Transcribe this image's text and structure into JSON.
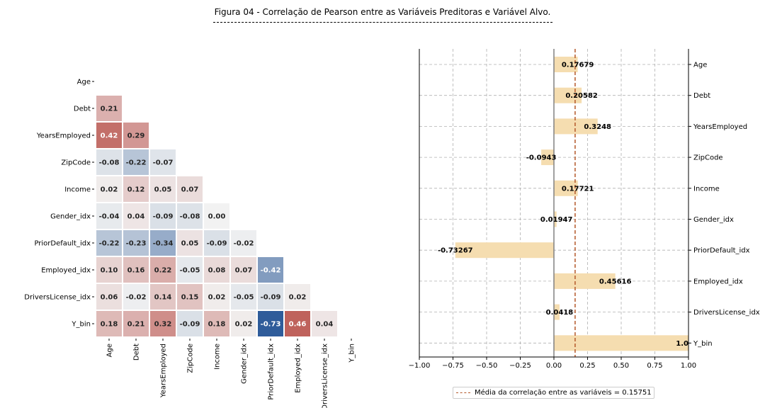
{
  "title": "Figura 04 - Correlação de Pearson entre as Variáveis Preditoras e Variável Alvo.",
  "title_underline": "--------------------------------------------------------------------------------------------------------",
  "chart_data": [
    {
      "type": "heatmap",
      "variables": [
        "Age",
        "Debt",
        "YearsEmployed",
        "ZipCode",
        "Income",
        "Gender_idx",
        "PriorDefault_idx",
        "Employed_idx",
        "DriversLicense_idx",
        "Y_bin"
      ],
      "lower_triangle": [
        [],
        [
          0.21
        ],
        [
          0.42,
          0.29
        ],
        [
          -0.08,
          -0.22,
          -0.07
        ],
        [
          0.02,
          0.12,
          0.05,
          0.07
        ],
        [
          -0.04,
          0.04,
          -0.09,
          -0.08,
          0.0
        ],
        [
          -0.22,
          -0.23,
          -0.34,
          0.05,
          -0.09,
          -0.02
        ],
        [
          0.1,
          0.16,
          0.22,
          -0.05,
          0.08,
          0.07,
          -0.42
        ],
        [
          0.06,
          -0.02,
          0.14,
          0.15,
          0.02,
          -0.05,
          -0.09,
          0.02
        ],
        [
          0.18,
          0.21,
          0.32,
          -0.09,
          0.18,
          0.02,
          -0.73,
          0.46,
          0.04
        ]
      ],
      "color_scale": {
        "negative": "#2f5c9a",
        "neutral": "#f2f2f2",
        "positive": "#b5463f"
      }
    },
    {
      "type": "bar",
      "orientation": "horizontal",
      "categories": [
        "Age",
        "Debt",
        "YearsEmployed",
        "ZipCode",
        "Income",
        "Gender_idx",
        "PriorDefault_idx",
        "Employed_idx",
        "DriversLicense_idx",
        "Y_bin"
      ],
      "values": [
        0.17679,
        0.20582,
        0.3248,
        -0.0943,
        0.17721,
        0.01947,
        -0.73267,
        0.45616,
        0.0418,
        1.0
      ],
      "value_labels": [
        "0.17679",
        "0.20582",
        "0.3248",
        "-0.0943",
        "0.17721",
        "0.01947",
        "-0.73267",
        "0.45616",
        "0.0418",
        "1.0"
      ],
      "xlim": [
        -1.0,
        1.0
      ],
      "xticks": [
        "−1.00",
        "−0.75",
        "−0.50",
        "−0.25",
        "0.00",
        "0.25",
        "0.50",
        "0.75",
        "1.00"
      ],
      "grid": true,
      "bar_color": "#f5ddb0",
      "mean_line": {
        "value": 0.15751,
        "color": "#b4582a",
        "label": "Média da correlação entre as variáveis = 0.15751"
      },
      "legend_position": "bottom"
    }
  ]
}
